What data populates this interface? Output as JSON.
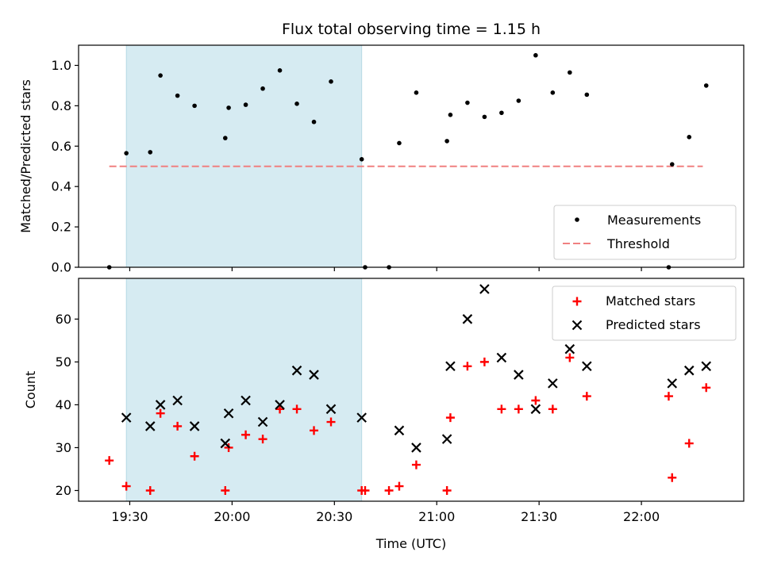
{
  "chart_data": {
    "title": "Flux total observing time = 1.15 h",
    "xlabel": "Time (UTC)",
    "x_ticks": [
      "19:30",
      "20:00",
      "20:30",
      "21:00",
      "21:30",
      "22:00"
    ],
    "shaded_region": {
      "x_start": "19:29",
      "x_end": "20:38",
      "color": "#add8e6"
    },
    "top": {
      "type": "scatter",
      "ylabel": "Matched/Predicted stars",
      "ylim": [
        0,
        1.1
      ],
      "y_ticks": [
        "0.0",
        "0.2",
        "0.4",
        "0.6",
        "0.8",
        "1.0"
      ],
      "threshold": {
        "y": 0.5,
        "x_start": "19:24",
        "x_end": "22:18",
        "color": "#f08080"
      },
      "legend": {
        "position": "bottom-right",
        "measurements": "Measurements",
        "threshold": "Threshold"
      },
      "measurements": [
        {
          "x": "19:24",
          "y": 0.0
        },
        {
          "x": "19:29",
          "y": 0.565
        },
        {
          "x": "19:36",
          "y": 0.57
        },
        {
          "x": "19:39",
          "y": 0.95
        },
        {
          "x": "19:44",
          "y": 0.85
        },
        {
          "x": "19:49",
          "y": 0.8
        },
        {
          "x": "19:58",
          "y": 0.64
        },
        {
          "x": "19:59",
          "y": 0.79
        },
        {
          "x": "20:04",
          "y": 0.805
        },
        {
          "x": "20:09",
          "y": 0.885
        },
        {
          "x": "20:14",
          "y": 0.975
        },
        {
          "x": "20:19",
          "y": 0.81
        },
        {
          "x": "20:24",
          "y": 0.72
        },
        {
          "x": "20:29",
          "y": 0.92
        },
        {
          "x": "20:38",
          "y": 0.535
        },
        {
          "x": "20:39",
          "y": 0.0
        },
        {
          "x": "20:46",
          "y": 0.0
        },
        {
          "x": "20:49",
          "y": 0.615
        },
        {
          "x": "20:54",
          "y": 0.865
        },
        {
          "x": "21:03",
          "y": 0.625
        },
        {
          "x": "21:04",
          "y": 0.755
        },
        {
          "x": "21:09",
          "y": 0.815
        },
        {
          "x": "21:14",
          "y": 0.745
        },
        {
          "x": "21:19",
          "y": 0.765
        },
        {
          "x": "21:24",
          "y": 0.825
        },
        {
          "x": "21:29",
          "y": 1.05
        },
        {
          "x": "21:34",
          "y": 0.865
        },
        {
          "x": "21:39",
          "y": 0.965
        },
        {
          "x": "21:44",
          "y": 0.855
        },
        {
          "x": "22:08",
          "y": 0.0
        },
        {
          "x": "22:09",
          "y": 0.51
        },
        {
          "x": "22:14",
          "y": 0.645
        },
        {
          "x": "22:19",
          "y": 0.9
        }
      ]
    },
    "bottom": {
      "type": "scatter",
      "ylabel": "Count",
      "ylim": [
        17.5,
        69.5
      ],
      "y_ticks": [
        "20",
        "30",
        "40",
        "50",
        "60"
      ],
      "legend": {
        "position": "top-right",
        "matched": "Matched stars",
        "predicted": "Predicted stars"
      },
      "matched": [
        {
          "x": "19:24",
          "y": 27
        },
        {
          "x": "19:29",
          "y": 21
        },
        {
          "x": "19:36",
          "y": 20
        },
        {
          "x": "19:39",
          "y": 38
        },
        {
          "x": "19:44",
          "y": 35
        },
        {
          "x": "19:49",
          "y": 28
        },
        {
          "x": "19:58",
          "y": 20
        },
        {
          "x": "19:59",
          "y": 30
        },
        {
          "x": "20:04",
          "y": 33
        },
        {
          "x": "20:09",
          "y": 32
        },
        {
          "x": "20:14",
          "y": 39
        },
        {
          "x": "20:19",
          "y": 39
        },
        {
          "x": "20:24",
          "y": 34
        },
        {
          "x": "20:29",
          "y": 36
        },
        {
          "x": "20:38",
          "y": 20
        },
        {
          "x": "20:39",
          "y": 20
        },
        {
          "x": "20:46",
          "y": 20
        },
        {
          "x": "20:49",
          "y": 21
        },
        {
          "x": "20:54",
          "y": 26
        },
        {
          "x": "21:03",
          "y": 20
        },
        {
          "x": "21:04",
          "y": 37
        },
        {
          "x": "21:09",
          "y": 49
        },
        {
          "x": "21:14",
          "y": 50
        },
        {
          "x": "21:19",
          "y": 39
        },
        {
          "x": "21:24",
          "y": 39
        },
        {
          "x": "21:29",
          "y": 41
        },
        {
          "x": "21:34",
          "y": 39
        },
        {
          "x": "21:39",
          "y": 51
        },
        {
          "x": "21:44",
          "y": 42
        },
        {
          "x": "22:08",
          "y": 42
        },
        {
          "x": "22:09",
          "y": 23
        },
        {
          "x": "22:14",
          "y": 31
        },
        {
          "x": "22:19",
          "y": 44
        }
      ],
      "predicted": [
        {
          "x": "19:29",
          "y": 37
        },
        {
          "x": "19:36",
          "y": 35
        },
        {
          "x": "19:39",
          "y": 40
        },
        {
          "x": "19:44",
          "y": 41
        },
        {
          "x": "19:49",
          "y": 35
        },
        {
          "x": "19:58",
          "y": 31
        },
        {
          "x": "19:59",
          "y": 38
        },
        {
          "x": "20:04",
          "y": 41
        },
        {
          "x": "20:09",
          "y": 36
        },
        {
          "x": "20:14",
          "y": 40
        },
        {
          "x": "20:19",
          "y": 48
        },
        {
          "x": "20:24",
          "y": 47
        },
        {
          "x": "20:29",
          "y": 39
        },
        {
          "x": "20:38",
          "y": 37
        },
        {
          "x": "20:49",
          "y": 34
        },
        {
          "x": "20:54",
          "y": 30
        },
        {
          "x": "21:03",
          "y": 32
        },
        {
          "x": "21:04",
          "y": 49
        },
        {
          "x": "21:09",
          "y": 60
        },
        {
          "x": "21:14",
          "y": 67
        },
        {
          "x": "21:19",
          "y": 51
        },
        {
          "x": "21:24",
          "y": 47
        },
        {
          "x": "21:29",
          "y": 39
        },
        {
          "x": "21:34",
          "y": 45
        },
        {
          "x": "21:39",
          "y": 53
        },
        {
          "x": "21:44",
          "y": 49
        },
        {
          "x": "22:09",
          "y": 45
        },
        {
          "x": "22:14",
          "y": 48
        },
        {
          "x": "22:19",
          "y": 49
        }
      ]
    },
    "colors": {
      "measurement": "#000000",
      "matched": "#ff0000",
      "predicted": "#000000"
    }
  }
}
